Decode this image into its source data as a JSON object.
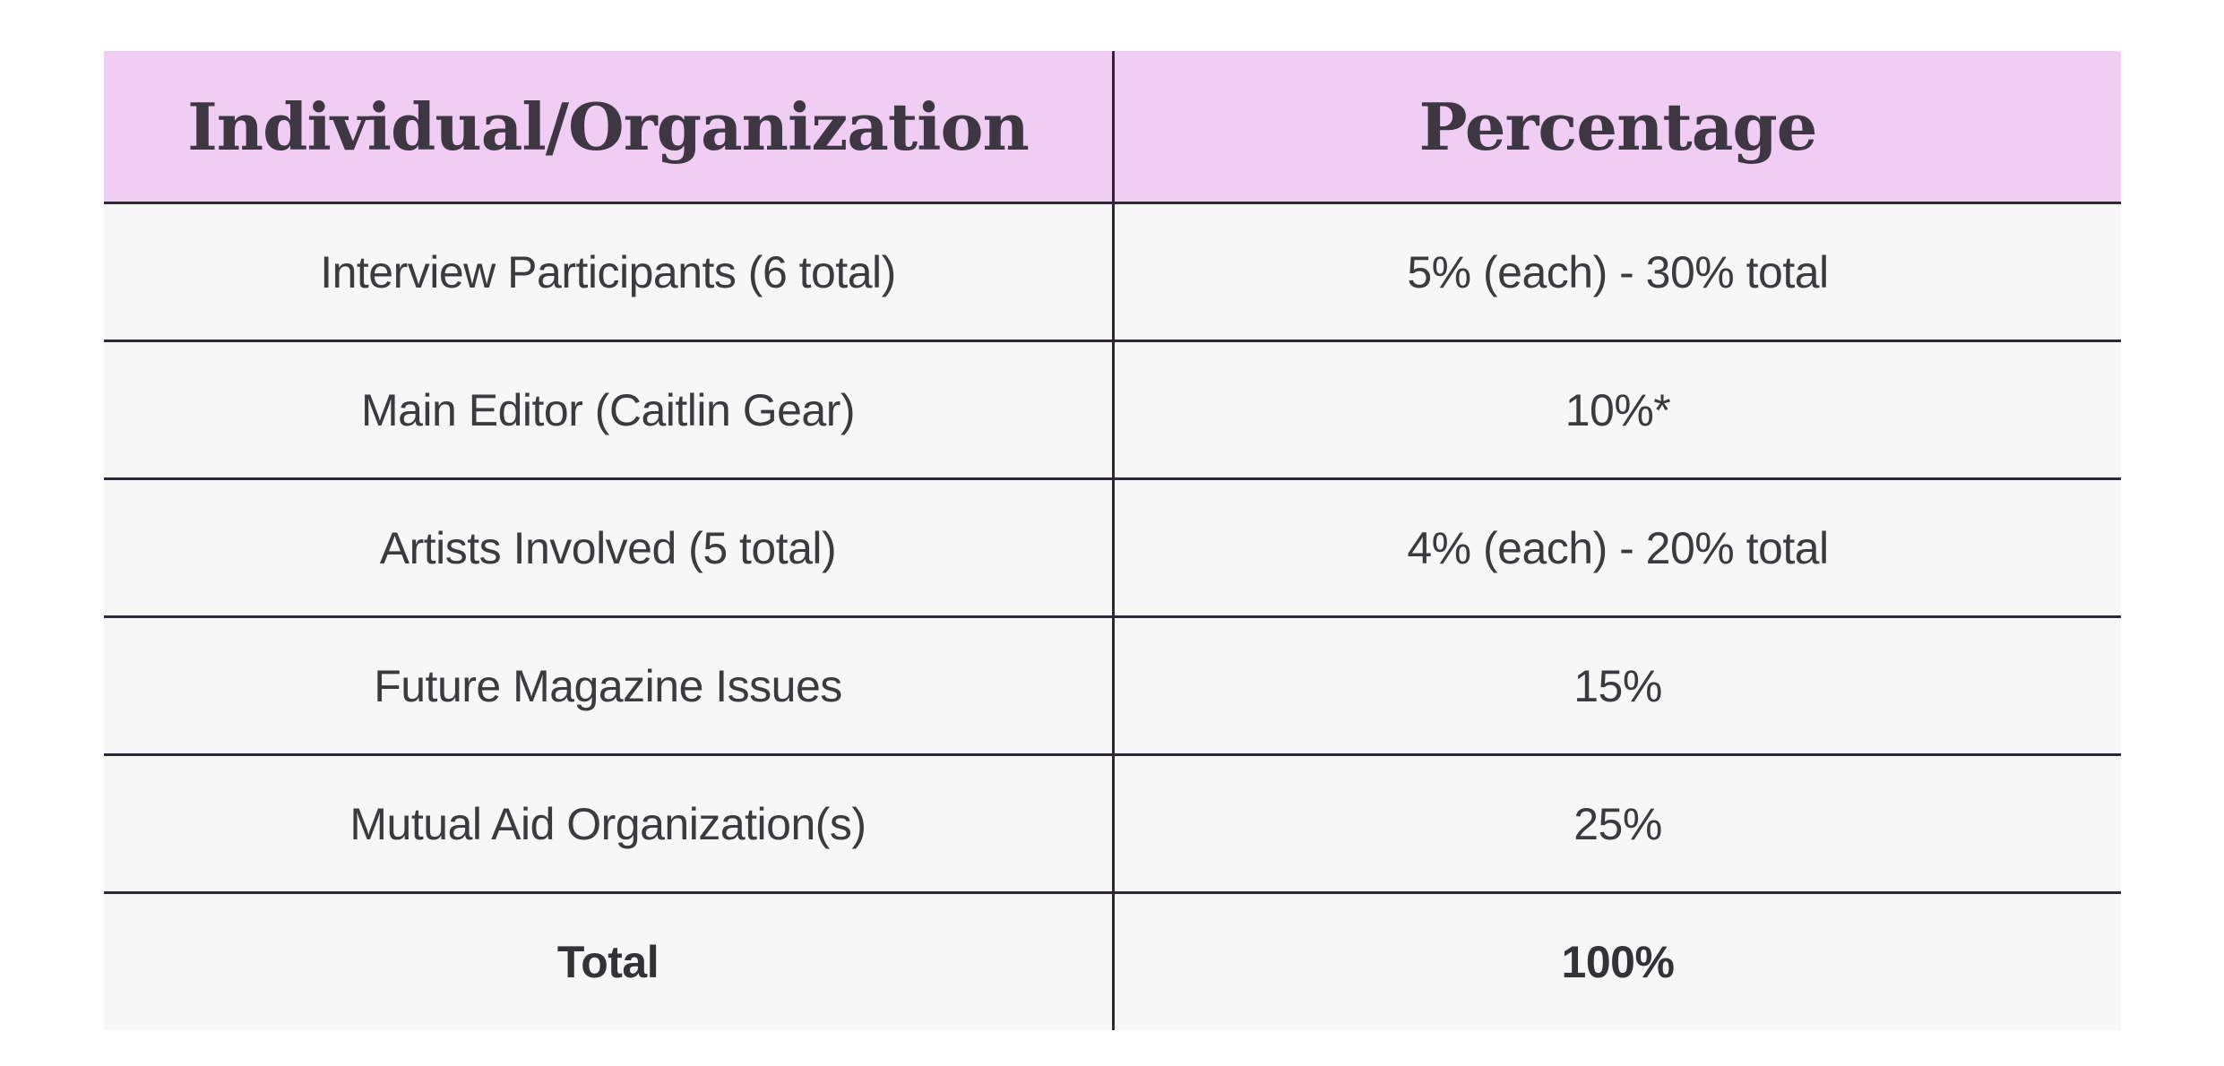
{
  "colors": {
    "page_background": "#ffffff",
    "header_background": "#f0cef4",
    "cell_background": "#f7f7f7",
    "grid_line": "#2e2836",
    "header_text": "#3f3644",
    "body_text": "#3c3a3e"
  },
  "table": {
    "columns": [
      {
        "label": "Individual/Organization"
      },
      {
        "label": "Percentage"
      }
    ],
    "rows": [
      {
        "name": "Interview Participants (6 total)",
        "percentage": "5% (each) - 30% total"
      },
      {
        "name": "Main Editor (Caitlin Gear)",
        "percentage": "10%*"
      },
      {
        "name": "Artists Involved (5 total)",
        "percentage": "4% (each) - 20% total"
      },
      {
        "name": "Future Magazine Issues",
        "percentage": "15%"
      },
      {
        "name": "Mutual Aid Organization(s)",
        "percentage": "25%"
      },
      {
        "name": "Total",
        "percentage": "100%"
      }
    ]
  },
  "chart_data": {
    "type": "table",
    "title": "",
    "columns": [
      "Individual/Organization",
      "Percentage"
    ],
    "rows": [
      [
        "Interview Participants (6 total)",
        "5% (each) - 30% total"
      ],
      [
        "Main Editor (Caitlin Gear)",
        "10%*"
      ],
      [
        "Artists Involved (5 total)",
        "4% (each) - 20% total"
      ],
      [
        "Future Magazine Issues",
        "15%"
      ],
      [
        "Mutual Aid Organization(s)",
        "25%"
      ],
      [
        "Total",
        "100%"
      ]
    ],
    "values_numeric_percent": {
      "interview_participants_each": 5,
      "interview_participants_total": 30,
      "main_editor": 10,
      "artists_each": 4,
      "artists_total": 20,
      "future_magazine_issues": 15,
      "mutual_aid_organizations": 25,
      "total": 100
    }
  }
}
